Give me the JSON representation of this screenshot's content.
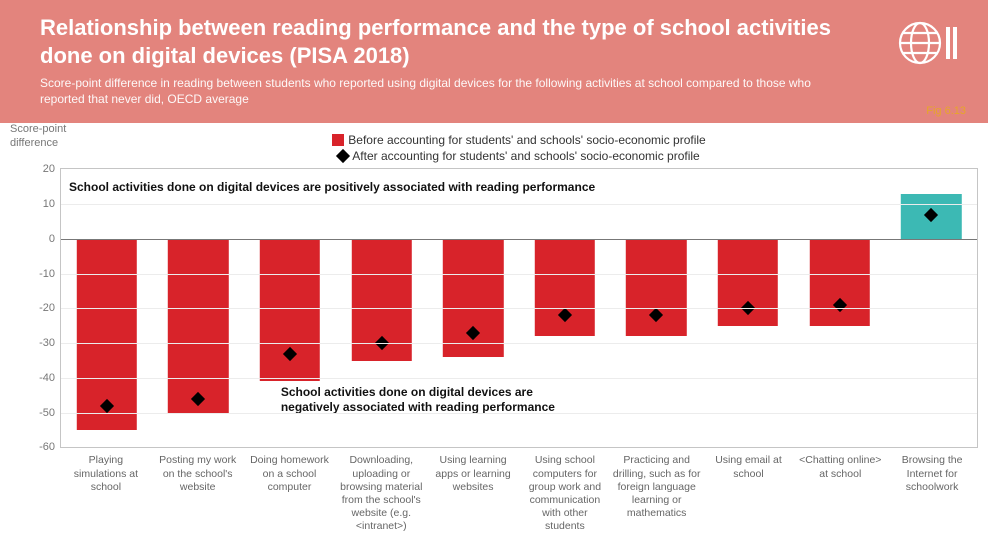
{
  "header": {
    "bg_color": "#e3847d",
    "text_color": "#ffffff",
    "title": "Relationship between reading performance and the type of school activities done on digital devices (PISA 2018)",
    "subtitle": "Score-point difference in reading between students who reported using digital devices for the following activities at school compared to those who reported that never did, OECD average",
    "fig_label": "Fig 6.13",
    "fig_label_color": "#e7a629",
    "logo_stroke": "#ffffff"
  },
  "chart": {
    "type": "bar-with-markers",
    "yaxis_title": "Score-point difference",
    "ylim": [
      -60,
      20
    ],
    "ytick_step": 10,
    "yticks": [
      20,
      10,
      0,
      -10,
      -20,
      -30,
      -40,
      -50,
      -60
    ],
    "grid_color": "#ececec",
    "axis_color": "#c5c5c5",
    "zero_color": "#777777",
    "tick_font_color": "#777777",
    "bar_width_pct": 66,
    "default_bar_color": "#d8232a",
    "highlight_bar_color": "#3cb9b4",
    "marker_color": "#000000",
    "legend": {
      "series1": {
        "swatch_color": "#d8232a",
        "label": "Before accounting for students' and schools' socio-economic profile"
      },
      "series2": {
        "marker_type": "diamond",
        "label": "After accounting for students' and schools' socio-economic profile"
      }
    },
    "annotation_top": "School activities done on digital devices are positively associated with reading performance",
    "annotation_bottom": "School activities done on digital devices are negatively associated with reading performance",
    "categories": [
      {
        "label": "Playing simulations at school",
        "before": -55,
        "after": -48,
        "color": "#d8232a"
      },
      {
        "label": "Posting my work on the school's website",
        "before": -50,
        "after": -46,
        "color": "#d8232a"
      },
      {
        "label": "Doing homework on a school computer",
        "before": -41,
        "after": -33,
        "color": "#d8232a"
      },
      {
        "label": "Downloading, uploading or browsing material from the school's website (e.g. <intranet>)",
        "before": -35,
        "after": -30,
        "color": "#d8232a"
      },
      {
        "label": "Using learning apps or learning websites",
        "before": -34,
        "after": -27,
        "color": "#d8232a"
      },
      {
        "label": "Using school computers for group work and communication with other students",
        "before": -28,
        "after": -22,
        "color": "#d8232a"
      },
      {
        "label": "Practicing and drilling, such as for foreign language learning or mathematics",
        "before": -28,
        "after": -22,
        "color": "#d8232a"
      },
      {
        "label": "Using email at school",
        "before": -25,
        "after": -20,
        "color": "#d8232a"
      },
      {
        "label": "<Chatting online> at school",
        "before": -25,
        "after": -19,
        "color": "#d8232a"
      },
      {
        "label": "Browsing the Internet for schoolwork",
        "before": 13,
        "after": 7,
        "color": "#3cb9b4"
      }
    ]
  }
}
